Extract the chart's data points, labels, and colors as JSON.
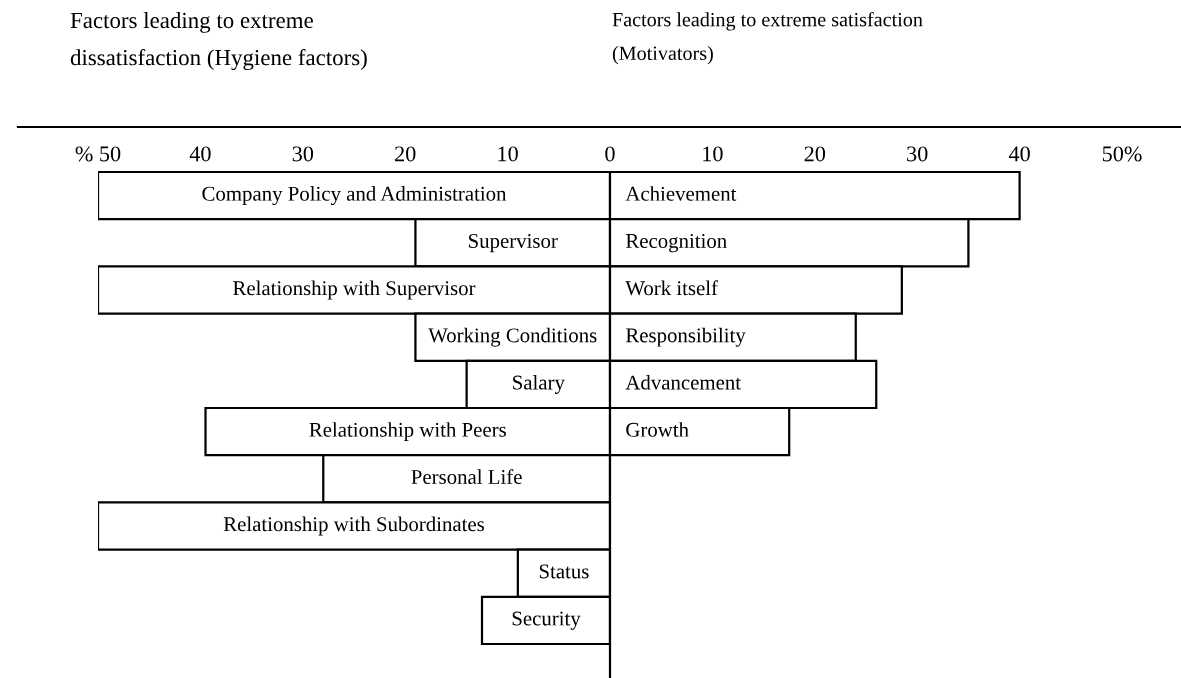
{
  "chart_data": [
    {
      "type": "bar",
      "orientation": "horizontal",
      "title": "Factors leading to extreme dissatisfaction (Hygiene factors)",
      "categories": [
        "Company Policy and Administration",
        "Supervisor",
        "Relationship with Supervisor",
        "Working Conditions",
        "Salary",
        "Relationship with Peers",
        "Personal Life",
        "Relationship with Subordinates",
        "Status",
        "Security"
      ],
      "values": [
        -50,
        -19,
        -50,
        -19,
        -14,
        -39.5,
        -28,
        -50,
        -9,
        -12.5
      ],
      "color": "#ffffff",
      "xlim": [
        -50,
        0
      ],
      "xticks": [
        {
          "value": -50,
          "label": "% 50"
        },
        {
          "value": -40,
          "label": "40"
        },
        {
          "value": -30,
          "label": "30"
        },
        {
          "value": -20,
          "label": "20"
        },
        {
          "value": -10,
          "label": "10"
        },
        0
      ]
    },
    {
      "type": "bar",
      "orientation": "horizontal",
      "title": "Factors leading to extreme satisfaction (Motivators)",
      "categories": [
        "Achievement",
        "Recognition",
        "Work itself",
        "Responsibility",
        "Advancement",
        "Growth",
        null,
        null,
        null,
        null
      ],
      "values": [
        40,
        35,
        28.5,
        24,
        26,
        17.5,
        null,
        null,
        null,
        null
      ],
      "color": "#ffffff",
      "xlim": [
        0,
        50
      ],
      "xticks": [
        10,
        20,
        30,
        40,
        {
          "value": 50,
          "label": "50%"
        }
      ]
    }
  ]
}
